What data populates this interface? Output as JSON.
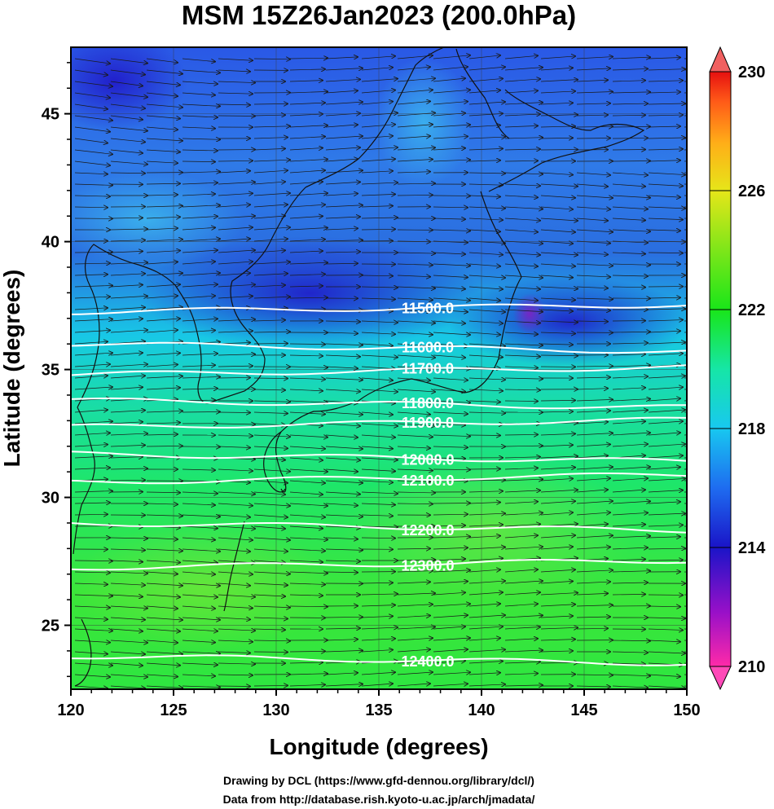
{
  "title": "MSM 15Z26Jan2023 (200.0hPa)",
  "xlabel": "Longitude (degrees)",
  "ylabel": "Latitude  (degrees)",
  "x_axis": {
    "min": 120,
    "max": 150,
    "ticks": [
      "120",
      "125",
      "130",
      "135",
      "140",
      "145",
      "150"
    ]
  },
  "y_axis": {
    "min": 22.5,
    "max": 47.6,
    "ticks": [
      "25",
      "30",
      "35",
      "40",
      "45"
    ]
  },
  "colorbar": {
    "min": 210,
    "max": 230,
    "labels": [
      "230",
      "226",
      "222",
      "218",
      "214",
      "210"
    ],
    "colors": [
      "#ff2aa8",
      "#9a10c8",
      "#1a14c8",
      "#1e6cf0",
      "#18c8f0",
      "#16e6a6",
      "#19e619",
      "#7ee619",
      "#e6e619",
      "#ffae18",
      "#ff5a18",
      "#e61010"
    ]
  },
  "chart_data": {
    "type": "contour",
    "field": "temperature shading (colorbar 210-230)",
    "contours": [
      {
        "label": "11500.0",
        "lat": 37.25
      },
      {
        "label": "11600.0",
        "lat": 36.0
      },
      {
        "label": "11700.0",
        "lat": 34.8
      },
      {
        "label": "11800.0",
        "lat": 33.8
      },
      {
        "label": "11900.0",
        "lat": 32.75
      },
      {
        "label": "12000.0",
        "lat": 31.7
      },
      {
        "label": "12100.0",
        "lat": 30.6
      },
      {
        "label": "12200.0",
        "lat": 29.0
      },
      {
        "label": "12300.0",
        "lat": 27.25
      },
      {
        "label": "12400.0",
        "lat": 23.8
      }
    ],
    "wind": "westerly vectors across the domain"
  },
  "credits": {
    "line1": "Drawing by DCL (https://www.gfd-dennou.org/library/dcl/)",
    "line2": "Data from http://database.rish.kyoto-u.ac.jp/arch/jmadata/"
  }
}
